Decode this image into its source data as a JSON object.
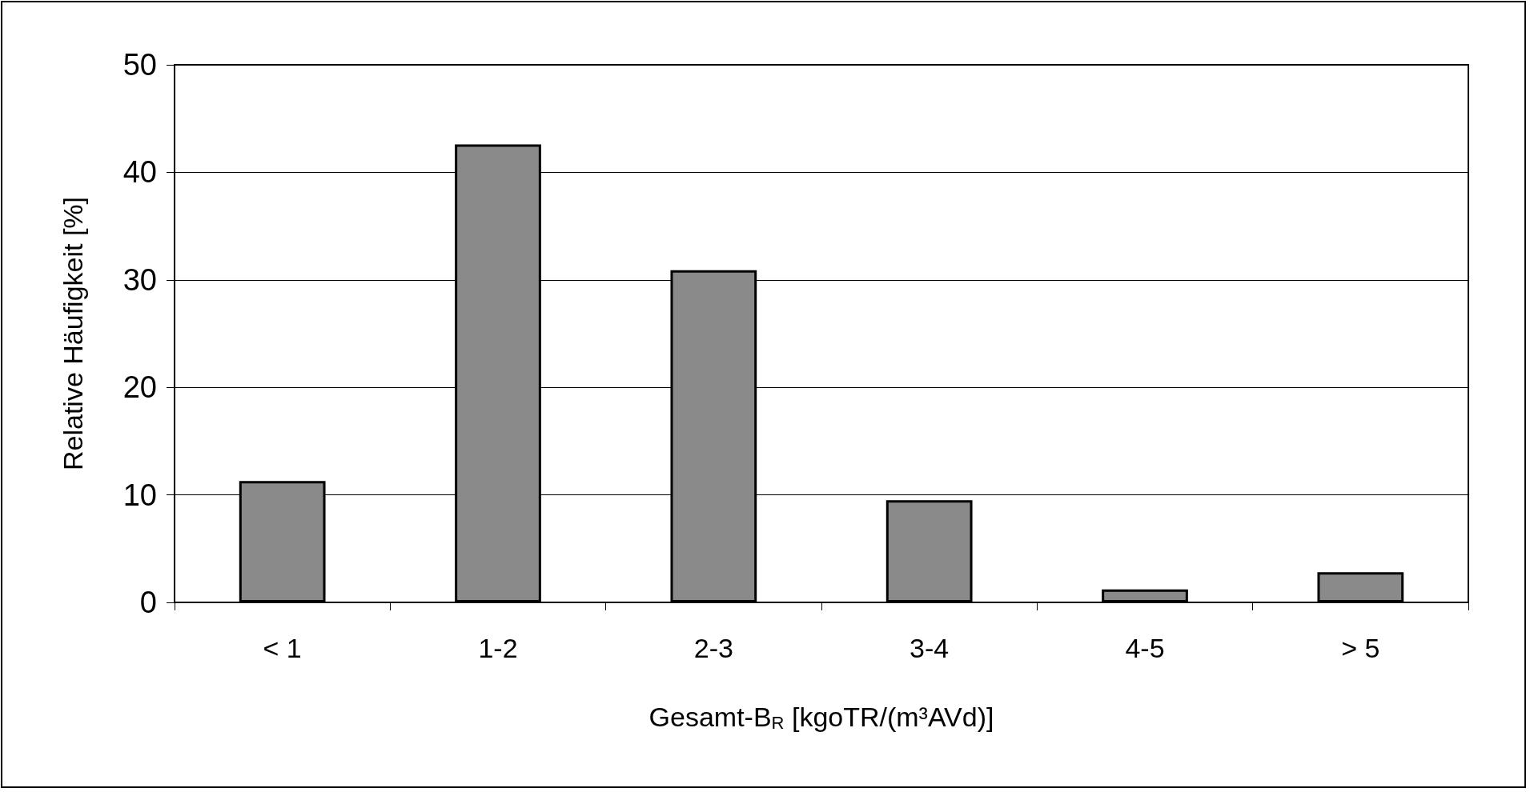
{
  "chart_data": {
    "type": "bar",
    "xlabel": "Gesamt-B$_{R}$ [kgoTR/(m³AVd)]",
    "ylabel": "Relative Häufigkeit [%]",
    "categories": [
      "< 1",
      "1-2",
      "2-3",
      "3-4",
      "4-5",
      "> 5"
    ],
    "values": [
      11.3,
      42.6,
      30.9,
      9.5,
      1.2,
      2.8
    ],
    "color": "#8a8a8a",
    "ylim": [
      0,
      50
    ],
    "yticks": [
      0,
      10,
      20,
      30,
      40,
      50
    ],
    "grid": "y"
  }
}
